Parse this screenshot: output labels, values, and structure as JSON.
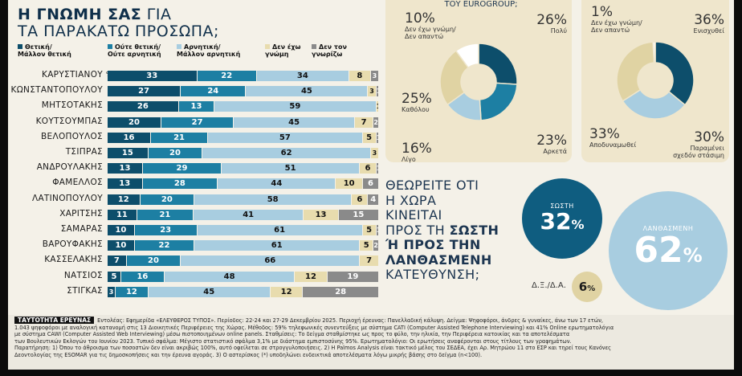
{
  "title": {
    "line1_bold": "Η ΓΝΩΜΗ ΣΑΣ",
    "line1_rest": " ΓΙΑ",
    "line2": "ΤΑ ΠΑΡΑΚΑΤΩ ΠΡΟΣΩΠΑ;"
  },
  "legend": [
    {
      "label": "Θετική/\nΜάλλον θετική",
      "color": "#0d4e6b"
    },
    {
      "label": "Ούτε θετική/\nΟύτε αρνητική",
      "color": "#1d7fa3"
    },
    {
      "label": "Αρνητική/\nΜάλλον αρνητική",
      "color": "#a8cde0"
    },
    {
      "label": "Δεν έχω\nγνώμη",
      "color": "#e8dcae"
    },
    {
      "label": "Δεν τον\nγνωρίζω",
      "color": "#8a8a8a"
    }
  ],
  "pct_label": "%",
  "chart_data": [
    {
      "type": "bar",
      "stacked": true,
      "orientation": "horizontal",
      "categories": [
        "ΚΑΡΥΣΤΙΑΝΟΥ",
        "ΚΩΝΣΤΑΝΤΟΠΟΥΛΟΥ",
        "ΜΗΤΣΟΤΑΚΗΣ",
        "ΚΟΥΤΣΟΥΜΠΑΣ",
        "ΒΕΛΟΠΟΥΛΟΣ",
        "ΤΣΙΠΡΑΣ",
        "ΑΝΔΡΟΥΛΑΚΗΣ",
        "ΦΑΜΕΛΛΟΣ",
        "ΛΑΤΙΝΟΠΟΥΛΟΥ",
        "ΧΑΡΙΤΣΗΣ",
        "ΣΑΜΑΡΑΣ",
        "ΒΑΡΟΥΦΑΚΗΣ",
        "ΚΑΣΣΕΛΑΚΗΣ",
        "ΝΑΤΣΙΟΣ",
        "ΣΤΙΓΚΑΣ"
      ],
      "series": [
        {
          "name": "Θετική/Μάλλον θετική",
          "values": [
            33,
            27,
            26,
            20,
            16,
            15,
            13,
            13,
            12,
            11,
            10,
            10,
            7,
            5,
            3
          ]
        },
        {
          "name": "Ούτε θετική/Ούτε αρνητική",
          "values": [
            22,
            24,
            13,
            27,
            21,
            20,
            29,
            28,
            20,
            21,
            23,
            22,
            20,
            16,
            12
          ]
        },
        {
          "name": "Αρνητική/Μάλλον αρνητική",
          "values": [
            34,
            45,
            59,
            45,
            57,
            62,
            51,
            44,
            58,
            41,
            61,
            61,
            66,
            48,
            45
          ]
        },
        {
          "name": "Δεν έχω γνώμη",
          "values": [
            8,
            3,
            1,
            7,
            5,
            3,
            6,
            10,
            6,
            13,
            5,
            5,
            7,
            12,
            12
          ]
        },
        {
          "name": "Δεν τον γνωρίζω",
          "values": [
            3,
            1,
            0,
            2,
            1,
            0,
            1,
            6,
            4,
            15,
            1,
            2,
            0,
            19,
            28
          ]
        }
      ],
      "value_labels": [
        [
          "33",
          "22",
          "34",
          "8",
          "3"
        ],
        [
          "27",
          "24",
          "45",
          "3",
          "1"
        ],
        [
          "26",
          "13",
          "59",
          "1",
          ""
        ],
        [
          "20",
          "27",
          "45",
          "7",
          "2"
        ],
        [
          "16",
          "21",
          "57",
          "5",
          "1"
        ],
        [
          "15",
          "20",
          "62",
          "3",
          ""
        ],
        [
          "13",
          "29",
          "51",
          "6",
          "1"
        ],
        [
          "13",
          "28",
          "44",
          "10",
          "6"
        ],
        [
          "12",
          "20",
          "58",
          "6",
          "4"
        ],
        [
          "11",
          "21",
          "41",
          "13",
          "15"
        ],
        [
          "10",
          "23",
          "61",
          "5",
          "1"
        ],
        [
          "10",
          "22",
          "61",
          "5",
          "2"
        ],
        [
          "7",
          "20",
          "66",
          "7",
          ""
        ],
        [
          "5",
          "16",
          "48",
          "12",
          "19"
        ],
        [
          "3",
          "12",
          "45",
          "12",
          "28"
        ]
      ]
    },
    {
      "type": "pie",
      "title_fragment": "ΤΟΥ EUROGROUP;",
      "slices": [
        {
          "label": "Πολύ",
          "value": 26,
          "color": "#0d4e6b"
        },
        {
          "label": "Αρκετά",
          "value": 23,
          "color": "#1d7fa3"
        },
        {
          "label": "Λίγο",
          "value": 16,
          "color": "#a8cde0"
        },
        {
          "label": "Καθόλου",
          "value": 25,
          "color": "#e0d3a3"
        },
        {
          "label": "Δεν έχω γνώμη/\nΔεν απαντώ",
          "value": 10,
          "color": "#ffffff"
        }
      ]
    },
    {
      "type": "pie",
      "slices": [
        {
          "label": "Ενισχυθεί",
          "value": 36,
          "color": "#0d4e6b"
        },
        {
          "label": "Παραμένει\nσχεδόν στάσιμη",
          "value": 30,
          "color": "#a8cde0"
        },
        {
          "label": "Αποδυναμωθεί",
          "value": 33,
          "color": "#e0d3a3"
        },
        {
          "label": "Δεν έχω γνώμη/\nΔεν απαντώ",
          "value": 1,
          "color": "#ffffff"
        }
      ]
    },
    {
      "type": "pie",
      "question": [
        "ΘΕΩΡΕΙΤΕ ΟΤΙ",
        "Η ΧΩΡΑ",
        "ΚΙΝΕΙΤΑΙ",
        "ΠΡΟΣ ΤΗ",
        "ΣΩΣΤΗ",
        "Ή ΠΡΟΣ ΤΗΝ",
        "ΛΑΝΘΑΣΜΕΝΗ",
        "ΚΑΤΕΥΘΥΝΣΗ;"
      ],
      "slices": [
        {
          "label": "ΣΩΣΤΗ",
          "value": 32,
          "color": "#0f5d80"
        },
        {
          "label": "ΛΑΝΘΑΣΜΕΝΗ",
          "value": 62,
          "color": "#a8cde0"
        },
        {
          "label": "Δ.Ξ./Δ.Α.",
          "value": 6,
          "color": "#e0d3a3"
        }
      ]
    }
  ],
  "footer": {
    "tag": "ΤΑΥΤΟΤΗΤΑ ΕΡΕΥΝΑΣ",
    "lines": [
      "Εντολέας: Εφημερίδα «ΕΛΕΥΘΕΡΟΣ ΤΥΠΟΣ». Περίοδος: 22-24 και 27-29 Δεκεμβρίου 2025. Περιοχή έρευνας: Πανελλαδική κάλυψη. Δείγμα: Ψηφοφόροι, άνδρες & γυναίκες, άνω των 17 ετών,",
      "1.043 ψηφοφόροι με αναλογική κατανομή στις 13 Διοικητικές Περιφέρειες της Χώρας. Μέθοδος: 59% τηλεφωνικές συνεντεύξεις με σύστημα CATI (Computer Assisted Telephone Interviewing) και 41% Online ερωτηματολόγια",
      "με σύστημα CAWI (Computer Assisted Web Interviewing) μέσω πιστοποιημένων online panels. Σταθμίσεις: Το δείγμα σταθμίστηκε ως προς το φύλο, την ηλικία, την Περιφέρεια κατοικίας και τα αποτελέσματα",
      "των Βουλευτικών Εκλογών του Ιουνίου 2023. Τυπικό σφάλμα: Μέγιστο στατιστικό σφάλμα 3,1% με διάστημα εμπιστοσύνης 95%. Ερωτηματολόγιο: Οι ερωτήσεις αναφέρονται στους τίτλους των γραφημάτων.",
      "Παρατήρηση: 1) Όπου το άθροισμα των ποσοστών δεν είναι ακριβώς 100%, αυτό οφείλεται σε στρογγυλοποιήσεις. 2) Η Palmos Analysis είναι τακτικό μέλος του ΣΕΔΕΑ, έχει Αρ. Μητρώου 11 στο ΕΣΡ και τηρεί τους Κανόνες",
      "Δεοντολογίας της ESOMAR για τις δημοσκοπήσεις και την έρευνα αγοράς. 3) Ο αστερίσκος (*) υποδηλώνει ενδεικτικά αποτελέσματα λόγω μικρής βάσης στο δείγμα (n<100)."
    ]
  }
}
